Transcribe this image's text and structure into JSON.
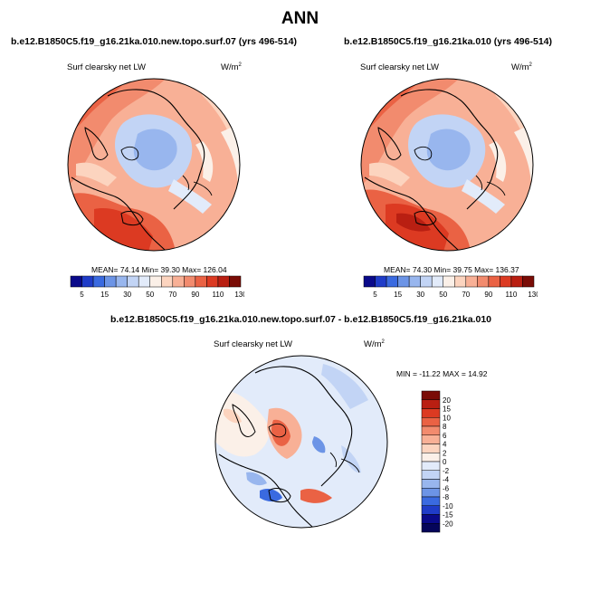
{
  "title": "ANN",
  "panels": [
    {
      "case": "b.e12.B1850C5.f19_g16.21ka.010.new.topo.surf.07 (yrs 496-514)",
      "variable": "Surf clearsky net LW",
      "units": "W/m",
      "units_sup": "2",
      "stats": "MEAN= 74.14  Min= 39.30  Max= 126.04"
    },
    {
      "case": "b.e12.B1850C5.f19_g16.21ka.010 (yrs 496-514)",
      "variable": "Surf clearsky net LW",
      "units": "W/m",
      "units_sup": "2",
      "stats": "MEAN= 74.30  Min= 39.75  Max= 136.37"
    }
  ],
  "diff_panel": {
    "case": "b.e12.B1850C5.f19_g16.21ka.010.new.topo.surf.07 - b.e12.B1850C5.f19_g16.21ka.010",
    "variable": "Surf clearsky net LW",
    "units": "W/m",
    "units_sup": "2",
    "stats": "MIN = -11.22 MAX =  14.92"
  },
  "colorbar_main": {
    "labels": [
      "5",
      "15",
      "30",
      "50",
      "70",
      "90",
      "110",
      "130"
    ],
    "colors": [
      "#0a0a8a",
      "#1f3cc8",
      "#3a6ae0",
      "#6c94e6",
      "#98b6ee",
      "#c2d4f5",
      "#e2ebfa",
      "#fbf0e8",
      "#fcd4bf",
      "#f8b096",
      "#f28b6e",
      "#ea6244",
      "#dc3a22",
      "#b91f12",
      "#7a0c06"
    ]
  },
  "colorbar_diff": {
    "labels": [
      "20",
      "15",
      "10",
      "8",
      "6",
      "4",
      "2",
      "0",
      "-2",
      "-4",
      "-6",
      "-8",
      "-10",
      "-15",
      "-20"
    ],
    "colors": [
      "#7a0c06",
      "#b91f12",
      "#dc3a22",
      "#ea6244",
      "#f28b6e",
      "#f8b096",
      "#fcd4bf",
      "#fbf0e8",
      "#e2ebfa",
      "#c2d4f5",
      "#98b6ee",
      "#6c94e6",
      "#3a6ae0",
      "#1f3cc8",
      "#0a0a8a",
      "#05055a"
    ]
  }
}
